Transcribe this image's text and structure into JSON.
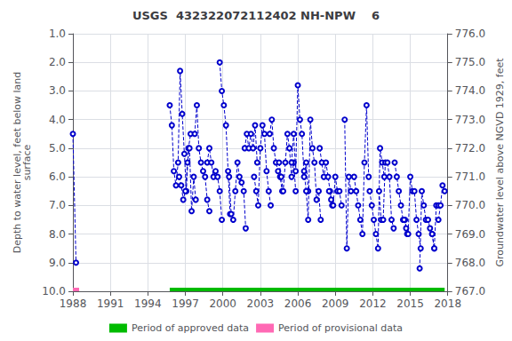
{
  "chart_data": {
    "type": "line",
    "title": "USGS  432322072112402 NH-NPW    6",
    "ylabel": "Depth to water level, feet below land\nsurface",
    "y2label": "Groundwater level above NGVD 1929, feet",
    "xlim": [
      1988,
      2018
    ],
    "xticks": [
      1988,
      1991,
      1994,
      1997,
      2000,
      2003,
      2006,
      2009,
      2012,
      2015,
      2018
    ],
    "ylim": [
      10.0,
      1.0
    ],
    "yticks": [
      {
        "value": 1.0,
        "label": "1.0"
      },
      {
        "value": 2.0,
        "label": "2.0"
      },
      {
        "value": 3.0,
        "label": "3.0"
      },
      {
        "value": 4.0,
        "label": "4.0"
      },
      {
        "value": 5.0,
        "label": "5.0"
      },
      {
        "value": 6.0,
        "label": "6.0"
      },
      {
        "value": 7.0,
        "label": "7.0"
      },
      {
        "value": 8.0,
        "label": "8.0"
      },
      {
        "value": 9.0,
        "label": "9.0"
      },
      {
        "value": 10.0,
        "label": "10.0"
      }
    ],
    "y2lim": [
      767.0,
      776.0
    ],
    "y2ticks": [
      {
        "value": 767.0,
        "label": "767.0"
      },
      {
        "value": 768.0,
        "label": "768.0"
      },
      {
        "value": 769.0,
        "label": "769.0"
      },
      {
        "value": 770.0,
        "label": "770.0"
      },
      {
        "value": 771.0,
        "label": "771.0"
      },
      {
        "value": 772.0,
        "label": "772.0"
      },
      {
        "value": 773.0,
        "label": "773.0"
      },
      {
        "value": 774.0,
        "label": "774.0"
      },
      {
        "value": 775.0,
        "label": "775.0"
      },
      {
        "value": 776.0,
        "label": "776.0"
      }
    ],
    "grid": true,
    "legend": "bottom",
    "color": "#0000cc",
    "marker": "circle",
    "line_style": "dashed",
    "series": [
      {
        "x": [
          1988.0,
          1988.25
        ],
        "values": [
          4.5,
          9.0
        ]
      },
      {
        "x": [
          1995.75,
          1995.92,
          1996.08,
          1996.25,
          1996.42,
          1996.58,
          1996.75,
          1996.92,
          1997.08,
          1997.25,
          1997.42
        ],
        "values": [
          3.5,
          4.2,
          5.8,
          6.3,
          5.5,
          2.3,
          3.8,
          5.2,
          6.5,
          5.0,
          4.5
        ]
      },
      {
        "x": [
          1996.5,
          1996.67,
          1996.83,
          1997.0,
          1997.17,
          1997.33,
          1997.5,
          1997.67,
          1997.83
        ],
        "values": [
          6.0,
          6.3,
          6.8,
          6.5,
          5.5,
          5.0,
          7.2,
          6.0,
          6.8
        ]
      },
      {
        "x": [
          1997.75,
          1997.92,
          1998.08,
          1998.25,
          1998.42,
          1998.58,
          1998.75,
          1998.92
        ],
        "values": [
          4.5,
          3.5,
          5.0,
          5.5,
          5.8,
          6.0,
          6.8,
          7.2
        ]
      },
      {
        "x": [
          1998.75,
          1998.92,
          1999.08,
          1999.25,
          1999.42,
          1999.58,
          1999.75,
          1999.92
        ],
        "values": [
          5.5,
          5.0,
          5.5,
          6.0,
          5.8,
          6.0,
          6.5,
          7.5
        ]
      },
      {
        "x": [
          1999.75,
          1999.92,
          2000.08,
          2000.25,
          2000.42,
          2000.58
        ],
        "values": [
          2.0,
          3.0,
          3.5,
          4.2,
          5.8,
          7.3
        ]
      },
      {
        "x": [
          2000.5,
          2000.67,
          2000.83,
          2001.0,
          2001.17,
          2001.33,
          2001.5,
          2001.67,
          2001.83
        ],
        "values": [
          6.0,
          7.3,
          7.5,
          6.5,
          5.5,
          6.0,
          6.2,
          6.5,
          7.8
        ]
      },
      {
        "x": [
          2001.75,
          2001.92,
          2002.08,
          2002.25,
          2002.42,
          2002.58,
          2002.75
        ],
        "values": [
          5.0,
          4.5,
          5.0,
          4.5,
          5.0,
          4.2,
          5.5
        ]
      },
      {
        "x": [
          2002.5,
          2002.67,
          2002.83,
          2003.0,
          2003.17,
          2003.33,
          2003.5,
          2003.67,
          2003.83
        ],
        "values": [
          6.0,
          6.5,
          7.0,
          5.0,
          4.2,
          4.5,
          5.8,
          6.5,
          7.0
        ]
      },
      {
        "x": [
          2003.75,
          2003.92,
          2004.08,
          2004.25,
          2004.42,
          2004.58,
          2004.75
        ],
        "values": [
          4.5,
          4.0,
          5.0,
          5.5,
          5.8,
          6.0,
          6.5
        ]
      },
      {
        "x": [
          2004.5,
          2004.67,
          2004.83,
          2005.0,
          2005.17,
          2005.33,
          2005.5,
          2005.67,
          2005.83
        ],
        "values": [
          5.5,
          6.0,
          6.5,
          5.5,
          4.5,
          5.0,
          6.0,
          5.5,
          6.5
        ]
      },
      {
        "x": [
          2005.5,
          2005.67,
          2005.83,
          2006.0,
          2006.17,
          2006.33,
          2006.5,
          2006.67,
          2006.83
        ],
        "values": [
          5.5,
          4.5,
          5.8,
          2.8,
          4.0,
          4.5,
          6.0,
          5.5,
          6.5
        ]
      },
      {
        "x": [
          2006.5,
          2006.67,
          2006.83,
          2007.0,
          2007.17,
          2007.33,
          2007.5,
          2007.67,
          2007.83
        ],
        "values": [
          5.8,
          6.5,
          7.5,
          4.0,
          5.0,
          5.5,
          6.8,
          6.5,
          7.5
        ]
      },
      {
        "x": [
          2007.75,
          2007.92,
          2008.08,
          2008.25,
          2008.42,
          2008.58,
          2008.75
        ],
        "values": [
          5.0,
          5.5,
          6.0,
          5.5,
          6.0,
          6.5,
          7.0
        ]
      },
      {
        "x": [
          2008.5,
          2008.67,
          2008.83,
          2009.0,
          2009.17,
          2009.33,
          2009.5
        ],
        "values": [
          6.5,
          6.8,
          7.0,
          6.0,
          6.5,
          6.5,
          7.0
        ]
      },
      {
        "x": [
          2009.75,
          2009.92,
          2010.08,
          2010.25
        ],
        "values": [
          4.0,
          8.5,
          6.0,
          6.5
        ]
      },
      {
        "x": [
          2010.5,
          2010.67,
          2010.83,
          2011.0,
          2011.17,
          2011.33,
          2011.5,
          2011.67
        ],
        "values": [
          6.0,
          6.5,
          7.0,
          7.5,
          8.0,
          5.5,
          3.5,
          6.0
        ]
      },
      {
        "x": [
          2011.75,
          2011.92,
          2012.08,
          2012.25,
          2012.42,
          2012.58,
          2012.75,
          2012.92
        ],
        "values": [
          6.5,
          7.0,
          7.5,
          8.0,
          8.5,
          5.0,
          5.5,
          6.0
        ]
      },
      {
        "x": [
          2012.5,
          2012.67,
          2012.83,
          2013.0,
          2013.17,
          2013.33,
          2013.5,
          2013.67
        ],
        "values": [
          6.5,
          7.5,
          7.5,
          5.5,
          5.5,
          6.0,
          7.5,
          7.8
        ]
      },
      {
        "x": [
          2013.75,
          2013.92,
          2014.08,
          2014.25,
          2014.42,
          2014.58,
          2014.75
        ],
        "values": [
          5.5,
          6.0,
          6.5,
          7.0,
          7.5,
          7.5,
          8.0
        ]
      },
      {
        "x": [
          2014.5,
          2014.67,
          2014.83,
          2015.0,
          2015.17,
          2015.33,
          2015.5,
          2015.67,
          2015.83
        ],
        "values": [
          7.5,
          7.8,
          8.0,
          6.0,
          6.5,
          6.5,
          7.5,
          8.0,
          8.5
        ]
      },
      {
        "x": [
          2015.75,
          2015.92,
          2016.08,
          2016.25,
          2016.42,
          2016.58,
          2016.75,
          2016.92
        ],
        "values": [
          9.2,
          6.5,
          7.0,
          7.5,
          7.5,
          7.8,
          8.0,
          8.5
        ]
      },
      {
        "x": [
          2016.75,
          2016.92,
          2017.08,
          2017.25
        ],
        "values": [
          8.0,
          8.5,
          7.0,
          7.0
        ]
      },
      {
        "x": [
          2017.25,
          2017.42,
          2017.58,
          2017.75
        ],
        "values": [
          7.5,
          7.0,
          6.3,
          6.5
        ]
      }
    ],
    "periods": [
      {
        "name": "Period of approved data",
        "start": 1995.75,
        "end": 2017.75,
        "y": 10.0,
        "color": "#00bb00"
      },
      {
        "name": "Period of provisional data",
        "start": 1988.0,
        "end": 1988.5,
        "y": 10.0,
        "color": "#ff69b4"
      }
    ]
  }
}
